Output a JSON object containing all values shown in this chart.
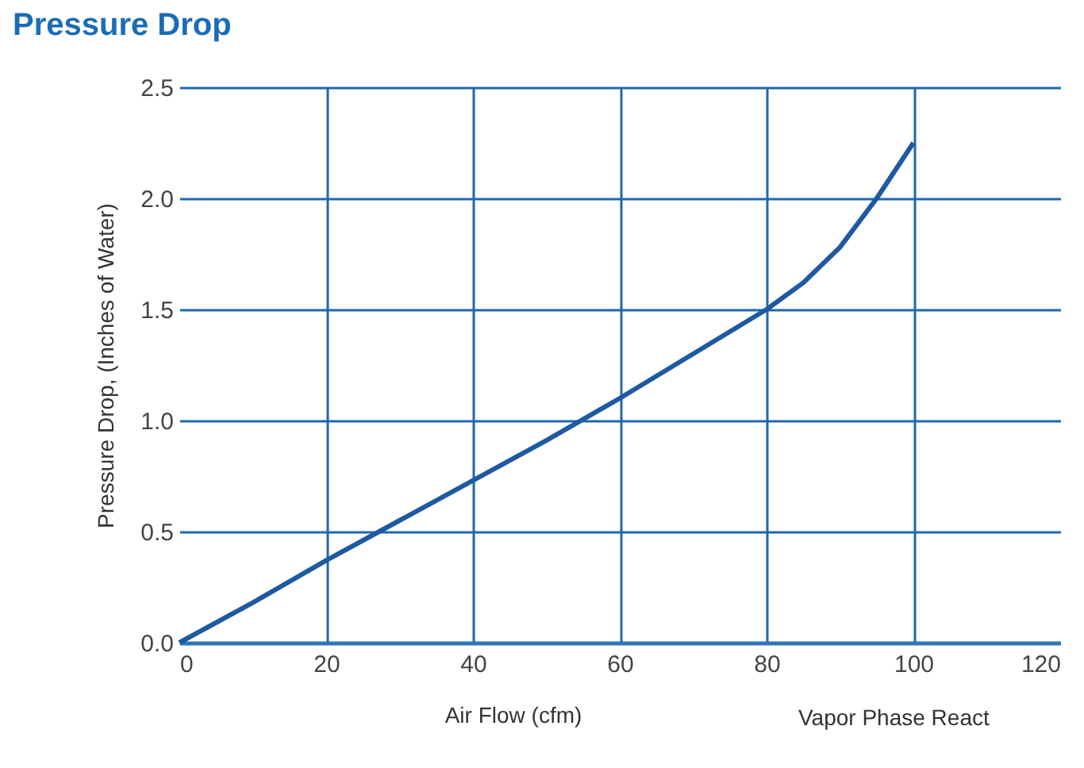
{
  "chart_data": {
    "type": "line",
    "title": "Pressure Drop",
    "xlabel": "Air Flow (cfm)",
    "ylabel": "Pressure Drop, (Inches of Water)",
    "annotations": [
      "Vapor Phase React"
    ],
    "x": [
      0,
      10,
      20,
      30,
      40,
      50,
      60,
      70,
      80,
      85,
      90,
      95,
      100
    ],
    "series": [
      {
        "color": "#1f5aa0",
        "values": [
          0,
          0.18,
          0.37,
          0.55,
          0.73,
          0.91,
          1.1,
          1.3,
          1.5,
          1.62,
          1.78,
          2.0,
          2.25
        ]
      }
    ],
    "xlim": [
      0,
      120
    ],
    "xticks": [
      0,
      20,
      40,
      60,
      80,
      100,
      120
    ],
    "ylim": [
      0,
      2.5
    ],
    "yticks": [
      {
        "value": 0,
        "label": "0.0"
      },
      {
        "value": 0.5,
        "label": "0.5"
      },
      {
        "value": 1,
        "label": "1.0"
      },
      {
        "value": 1.5,
        "label": "1.5"
      },
      {
        "value": 2,
        "label": "2.0"
      },
      {
        "value": 2.5,
        "label": "2.5"
      }
    ],
    "grid": true,
    "legend": false,
    "marker": "none",
    "line_style": "solid"
  }
}
